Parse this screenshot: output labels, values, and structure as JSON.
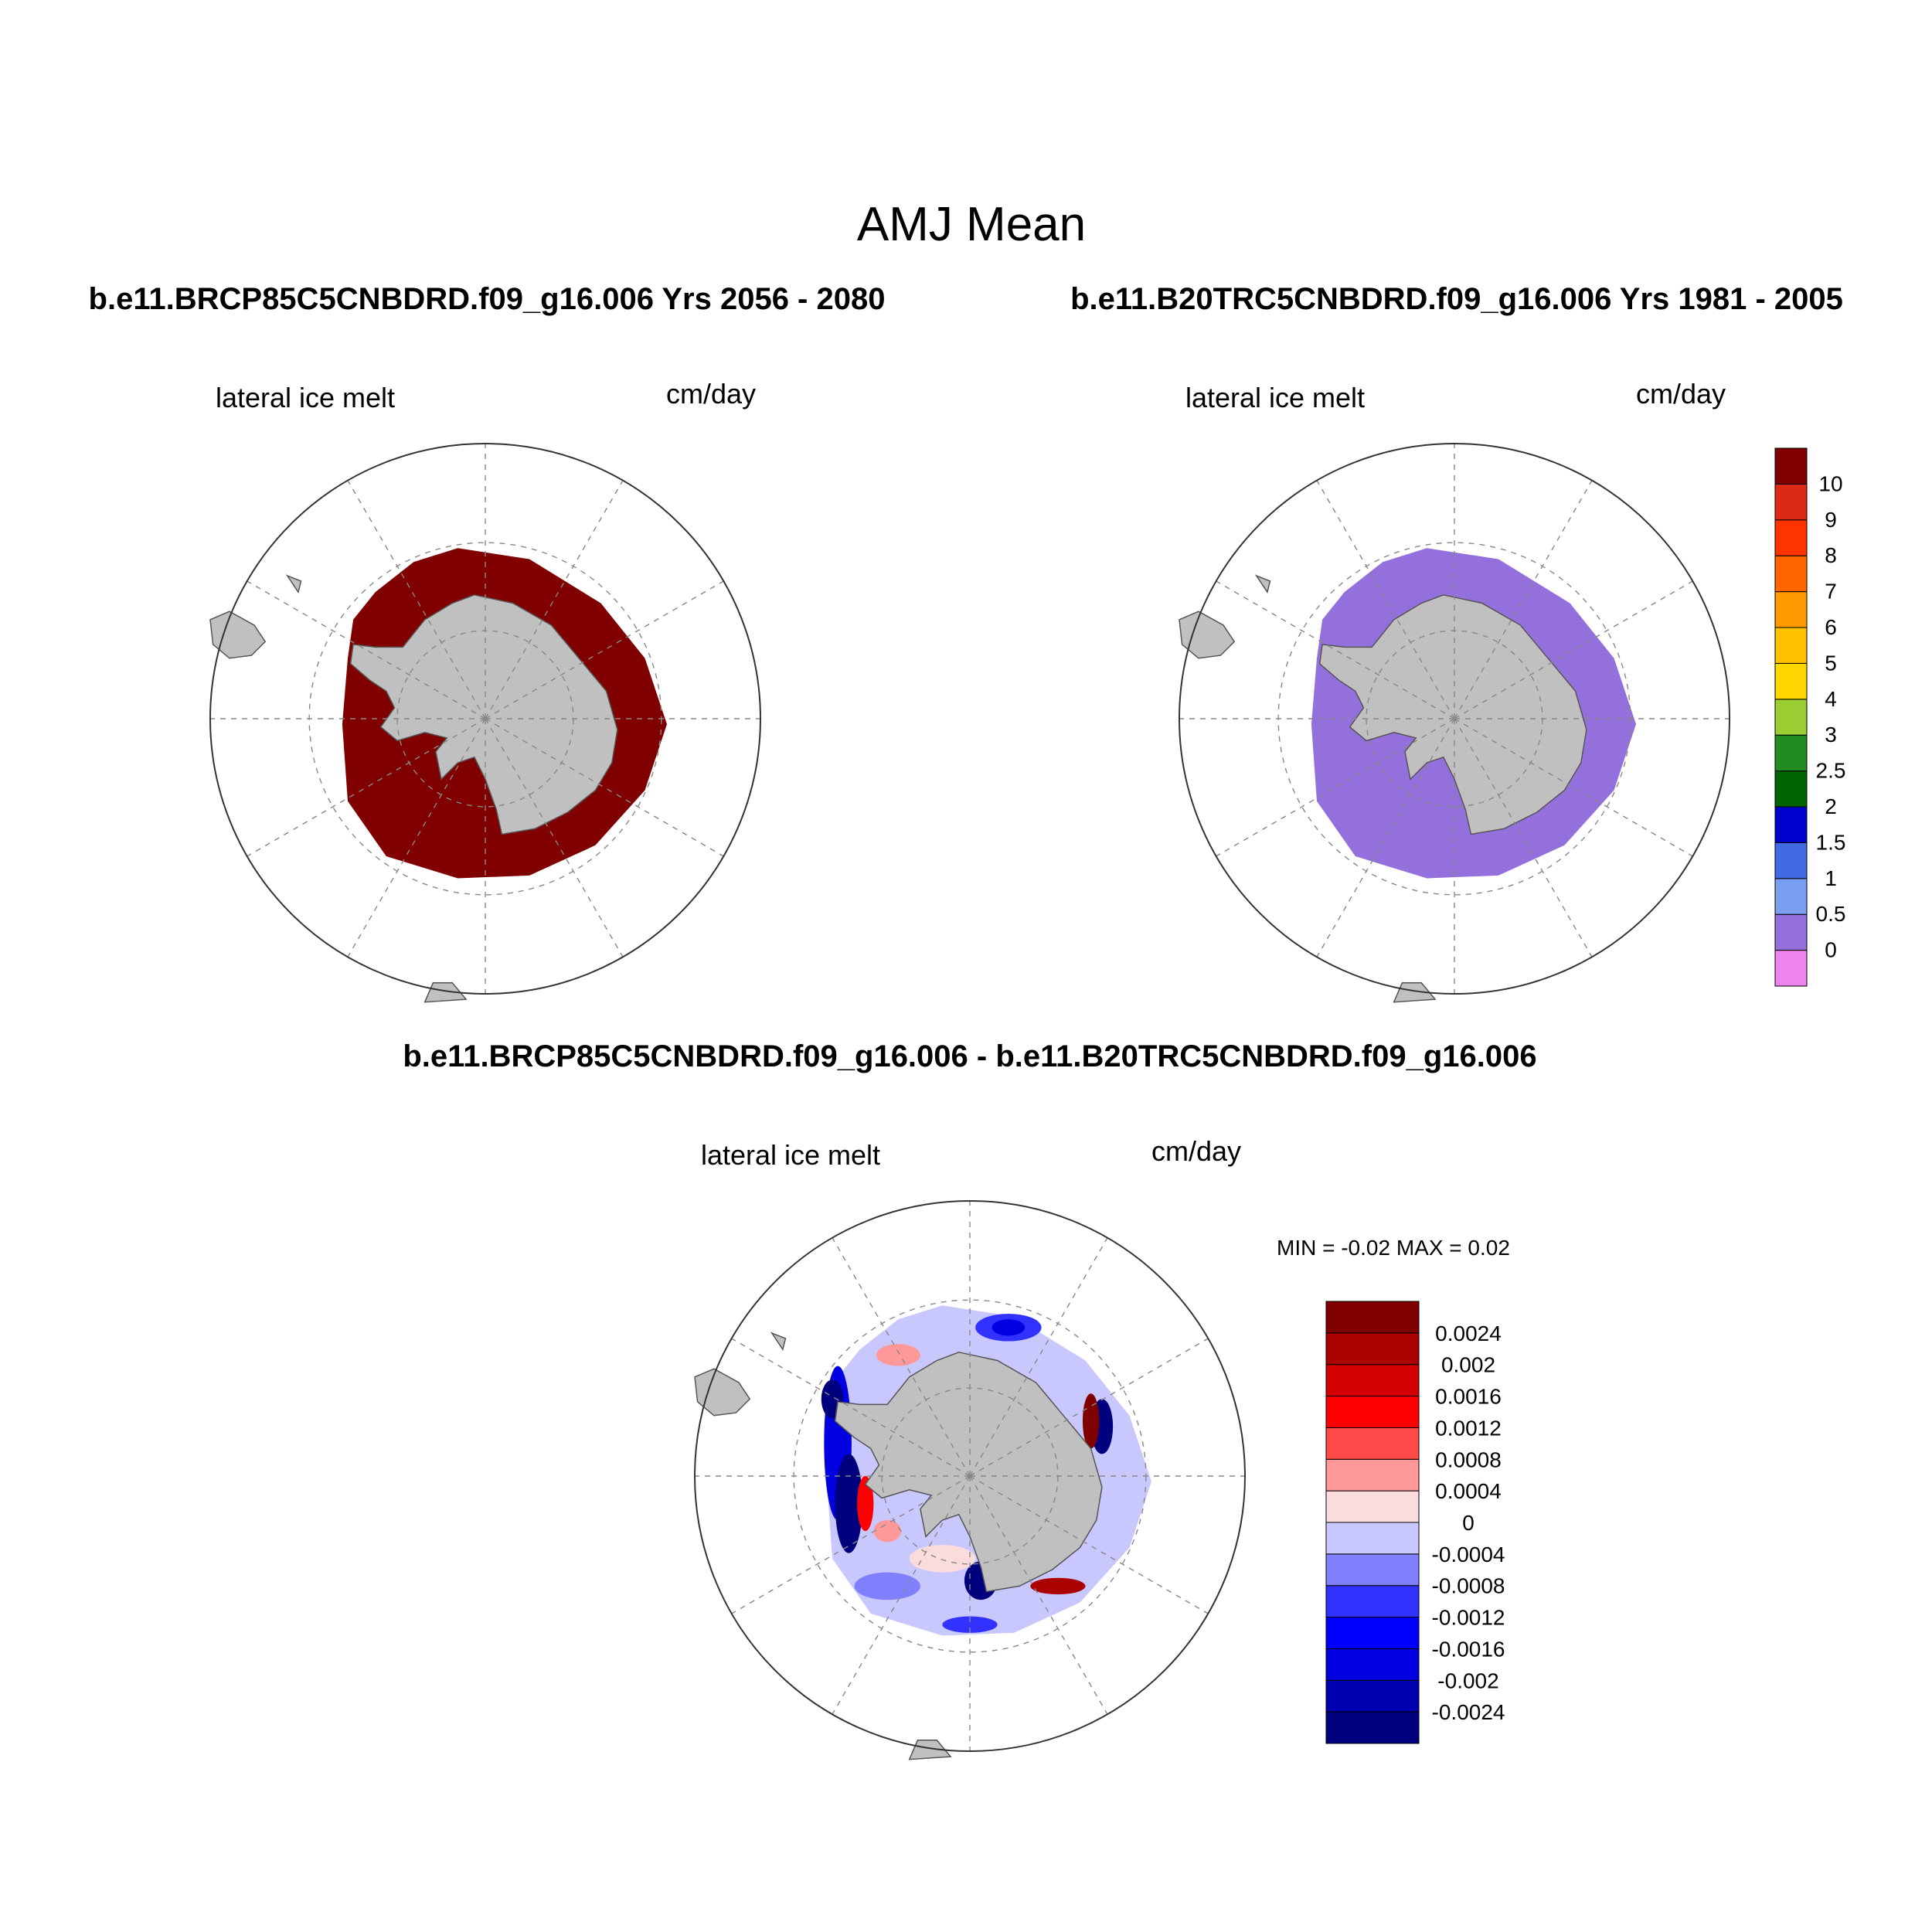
{
  "main_title": "AMJ Mean",
  "panels": {
    "left": {
      "case_title": "b.e11.BRCP85C5CNBDRD.f09_g16.006  Yrs 2056 - 2080",
      "variable": "lateral ice melt",
      "units": "cm/day",
      "ice_fill": "#800000"
    },
    "right": {
      "case_title": "b.e11.B20TRC5CNBDRD.f09_g16.006  Yrs 1981 - 2005",
      "variable": "lateral ice melt",
      "units": "cm/day",
      "ice_fill": "#9370db"
    },
    "diff": {
      "case_title": "b.e11.BRCP85C5CNBDRD.f09_g16.006 - b.e11.B20TRC5CNBDRD.f09_g16.006",
      "variable": "lateral ice melt",
      "units": "cm/day",
      "minmax": "MIN =  -0.02 MAX =   0.02"
    }
  },
  "colorbar_main": {
    "colors": [
      "#ee82ee",
      "#9370db",
      "#7b9ff0",
      "#4169e1",
      "#0000cd",
      "#006400",
      "#228b22",
      "#9acd32",
      "#ffd700",
      "#ffc000",
      "#ff9900",
      "#ff6600",
      "#ff3300",
      "#dc2a14",
      "#800000"
    ],
    "labels": [
      "0",
      "0.5",
      "1",
      "1.5",
      "2",
      "2.5",
      "3",
      "4",
      "5",
      "6",
      "7",
      "8",
      "9",
      "10"
    ]
  },
  "colorbar_diff": {
    "colors": [
      "#00007f",
      "#0000b0",
      "#0000e0",
      "#0000ff",
      "#3232ff",
      "#8080ff",
      "#c8c8ff",
      "#fadcdc",
      "#ff9898",
      "#ff4848",
      "#ff0000",
      "#d40000",
      "#aa0000",
      "#800000"
    ],
    "labels": [
      "-0.0024",
      "-0.002",
      "-0.0016",
      "-0.0012",
      "-0.0008",
      "-0.0004",
      "0",
      "0.0004",
      "0.0008",
      "0.0012",
      "0.0016",
      "0.002",
      "0.0024"
    ]
  },
  "map_colors": {
    "land": "#c0c0c0",
    "grid": "#888888"
  }
}
